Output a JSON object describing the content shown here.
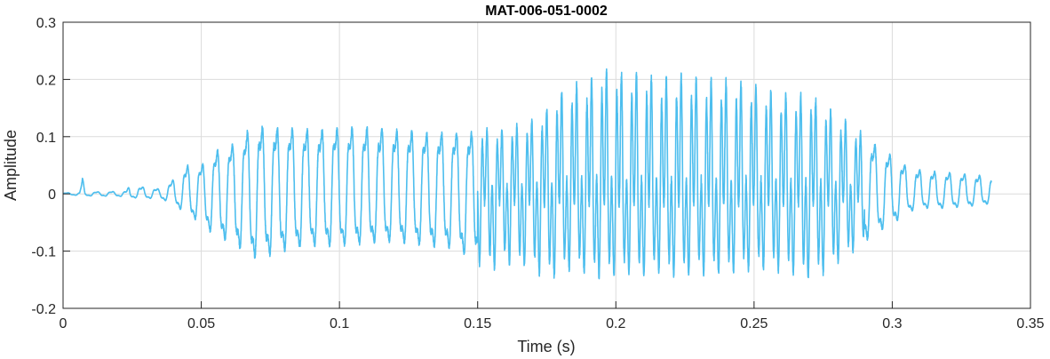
{
  "chart_data": {
    "type": "line",
    "title": "MAT-006-051-0002",
    "xlabel": "Time (s)",
    "ylabel": "Amplitude",
    "xlim": [
      0,
      0.35
    ],
    "ylim": [
      -0.2,
      0.3
    ],
    "grid": true,
    "x_ticks": [
      "0",
      "0.05",
      "0.1",
      "0.15",
      "0.2",
      "0.25",
      "0.3",
      "0.35"
    ],
    "y_ticks": [
      "-0.2",
      "-0.1",
      "0",
      "0.1",
      "0.2",
      "0.3"
    ],
    "x_tick_values": [
      0,
      0.05,
      0.1,
      0.15,
      0.2,
      0.25,
      0.3,
      0.35
    ],
    "y_tick_values": [
      -0.2,
      -0.1,
      0,
      0.1,
      0.2,
      0.3
    ],
    "line_color": "#4DBEEE",
    "envelope": {
      "description_of_series": "waveform sampled envelope",
      "t": [
        0,
        0.006,
        0.007,
        0.008,
        0.02,
        0.023,
        0.024,
        0.035,
        0.04,
        0.045,
        0.05,
        0.055,
        0.06,
        0.065,
        0.068,
        0.075,
        0.08,
        0.09,
        0.1,
        0.11,
        0.12,
        0.13,
        0.14,
        0.15,
        0.155,
        0.16,
        0.17,
        0.175,
        0.18,
        0.185,
        0.19,
        0.195,
        0.2,
        0.205,
        0.21,
        0.215,
        0.22,
        0.23,
        0.24,
        0.25,
        0.26,
        0.27,
        0.275,
        0.28,
        0.285,
        0.29,
        0.295,
        0.3,
        0.305,
        0.31,
        0.32,
        0.33,
        0.336
      ],
      "upper": [
        0.002,
        0.003,
        0.035,
        0.004,
        0.005,
        0.006,
        0.018,
        0.01,
        0.03,
        0.06,
        0.06,
        0.09,
        0.1,
        0.12,
        0.145,
        0.14,
        0.14,
        0.135,
        0.14,
        0.14,
        0.135,
        0.13,
        0.13,
        0.13,
        0.13,
        0.13,
        0.15,
        0.17,
        0.21,
        0.22,
        0.23,
        0.25,
        0.25,
        0.24,
        0.25,
        0.22,
        0.24,
        0.23,
        0.23,
        0.22,
        0.2,
        0.2,
        0.18,
        0.16,
        0.14,
        0.12,
        0.1,
        0.08,
        0.06,
        0.05,
        0.045,
        0.04,
        0.035
      ],
      "lower": [
        -0.002,
        -0.003,
        -0.02,
        -0.004,
        -0.005,
        -0.006,
        -0.008,
        -0.01,
        -0.02,
        -0.045,
        -0.06,
        -0.09,
        -0.1,
        -0.12,
        -0.135,
        -0.13,
        -0.12,
        -0.11,
        -0.11,
        -0.105,
        -0.1,
        -0.11,
        -0.115,
        -0.14,
        -0.155,
        -0.14,
        -0.15,
        -0.175,
        -0.16,
        -0.15,
        -0.16,
        -0.17,
        -0.165,
        -0.16,
        -0.165,
        -0.155,
        -0.165,
        -0.16,
        -0.16,
        -0.15,
        -0.155,
        -0.17,
        -0.16,
        -0.14,
        -0.12,
        -0.1,
        -0.08,
        -0.065,
        -0.04,
        -0.03,
        -0.03,
        -0.025,
        -0.02
      ]
    }
  }
}
